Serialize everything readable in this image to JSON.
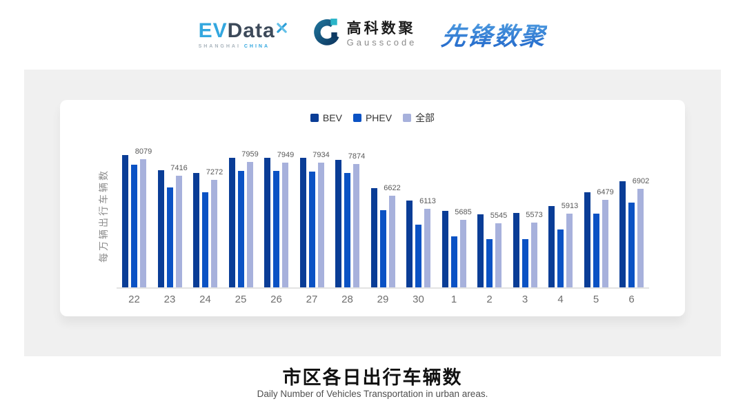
{
  "header": {
    "logos": {
      "evdata": {
        "ev": "EV",
        "data": "Data",
        "sub_shanghai": "SHANGHAI",
        "sub_china": "CHINA"
      },
      "gausscode": {
        "cn": "高科数聚",
        "en": "Gausscode"
      },
      "xianfeng": {
        "cn": "先锋数聚"
      }
    }
  },
  "chart_data": {
    "type": "bar",
    "title": "市区各日出行车辆数",
    "subtitle": "Daily Number of Vehicles Transportation in urban areas.",
    "ylabel": "每万辆出行车辆数",
    "xlabel": "",
    "categories": [
      "22",
      "23",
      "24",
      "25",
      "26",
      "27",
      "28",
      "29",
      "30",
      "1",
      "2",
      "3",
      "4",
      "5",
      "6"
    ],
    "series": [
      {
        "name": "BEV",
        "color": "#0A3D96",
        "values": [
          8235,
          7650,
          7530,
          8135,
          8130,
          8130,
          8050,
          6920,
          6445,
          6040,
          5895,
          5940,
          6230,
          6775,
          7200
        ]
      },
      {
        "name": "PHEV",
        "color": "#0B52C4",
        "values": [
          7850,
          6965,
          6755,
          7620,
          7610,
          7575,
          7530,
          6045,
          5480,
          5015,
          4915,
          4920,
          5305,
          5915,
          6350
        ]
      },
      {
        "name": "全部",
        "color": "#A7B1DC",
        "data_labels_shown": true,
        "values": [
          8079,
          7416,
          7272,
          7959,
          7949,
          7934,
          7874,
          6622,
          6113,
          5685,
          5545,
          5573,
          5913,
          6479,
          6902
        ]
      }
    ],
    "ylim": [
      3000,
      8460
    ],
    "legend_position": "top",
    "grid": false,
    "axis_line_color": "#E3E3E3",
    "colors": {
      "panel_bg": "#F0F0F0",
      "card_bg": "#FFFFFF",
      "label_text": "#595959",
      "tick_text": "#6E6E6E"
    }
  }
}
